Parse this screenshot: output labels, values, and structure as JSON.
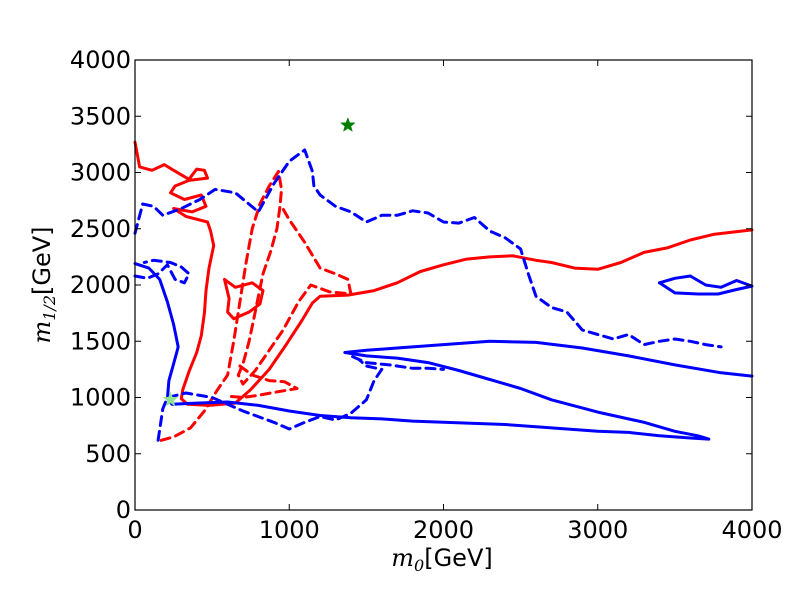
{
  "chart_data": {
    "type": "line",
    "title": "",
    "xlabel": {
      "symbol": "m",
      "subscript": "0",
      "unit": "[GeV]"
    },
    "ylabel": {
      "symbol": "m",
      "subscript": "1/2",
      "unit": "[GeV]"
    },
    "xlim": [
      0,
      4000
    ],
    "ylim": [
      0,
      4000
    ],
    "xticks": [
      0,
      1000,
      2000,
      3000,
      4000
    ],
    "yticks": [
      0,
      500,
      1000,
      1500,
      2000,
      2500,
      3000,
      3500,
      4000
    ],
    "grid": false,
    "legend": "none",
    "colors": {
      "red": "#ff0000",
      "blue": "#0000ff",
      "green": "#007f00",
      "lightgreen": "#8fe38f"
    },
    "series": [
      {
        "name": "red-solid-contour",
        "color": "#ff0000",
        "style": "solid",
        "points": [
          [
            0,
            3270
          ],
          [
            30,
            3050
          ],
          [
            110,
            3020
          ],
          [
            190,
            3070
          ],
          [
            250,
            3020
          ],
          [
            350,
            2940
          ],
          [
            400,
            3030
          ],
          [
            450,
            3020
          ],
          [
            470,
            2950
          ],
          [
            350,
            2930
          ],
          [
            260,
            2880
          ],
          [
            230,
            2820
          ],
          [
            320,
            2760
          ],
          [
            430,
            2800
          ],
          [
            460,
            2700
          ],
          [
            370,
            2650
          ],
          [
            250,
            2680
          ],
          [
            330,
            2610
          ],
          [
            470,
            2560
          ],
          [
            490,
            2480
          ],
          [
            510,
            2350
          ],
          [
            480,
            2150
          ],
          [
            460,
            1950
          ],
          [
            450,
            1750
          ],
          [
            430,
            1550
          ],
          [
            400,
            1400
          ],
          [
            350,
            1230
          ],
          [
            310,
            1070
          ],
          [
            300,
            990
          ],
          [
            340,
            940
          ],
          [
            480,
            930
          ],
          [
            650,
            950
          ],
          [
            750,
            1070
          ],
          [
            870,
            1250
          ],
          [
            980,
            1470
          ],
          [
            1080,
            1680
          ],
          [
            1150,
            1840
          ],
          [
            1200,
            1900
          ],
          [
            1380,
            1910
          ],
          [
            1550,
            1950
          ],
          [
            1700,
            2020
          ],
          [
            1850,
            2120
          ],
          [
            2000,
            2180
          ],
          [
            2150,
            2230
          ],
          [
            2300,
            2250
          ],
          [
            2450,
            2260
          ],
          [
            2600,
            2220
          ],
          [
            2700,
            2200
          ],
          [
            2850,
            2150
          ],
          [
            3000,
            2140
          ],
          [
            3150,
            2200
          ],
          [
            3300,
            2290
          ],
          [
            3450,
            2330
          ],
          [
            3600,
            2400
          ],
          [
            3750,
            2450
          ],
          [
            4000,
            2490
          ]
        ]
      },
      {
        "name": "red-solid-small-loop",
        "color": "#ff0000",
        "style": "solid",
        "points": [
          [
            580,
            2050
          ],
          [
            650,
            1980
          ],
          [
            760,
            2020
          ],
          [
            830,
            1950
          ],
          [
            810,
            1830
          ],
          [
            740,
            1760
          ],
          [
            640,
            1700
          ],
          [
            600,
            1760
          ],
          [
            610,
            1880
          ],
          [
            580,
            2050
          ]
        ]
      },
      {
        "name": "red-dashed-contour",
        "color": "#ff0000",
        "style": "dashed",
        "points": [
          [
            170,
            620
          ],
          [
            250,
            650
          ],
          [
            360,
            730
          ],
          [
            450,
            880
          ],
          [
            530,
            1060
          ],
          [
            600,
            1200
          ],
          [
            640,
            1500
          ],
          [
            680,
            1850
          ],
          [
            720,
            2200
          ],
          [
            760,
            2500
          ],
          [
            810,
            2720
          ],
          [
            870,
            2880
          ],
          [
            930,
            3010
          ],
          [
            950,
            2850
          ],
          [
            940,
            2700
          ],
          [
            920,
            2500
          ],
          [
            880,
            2300
          ],
          [
            830,
            2100
          ],
          [
            800,
            1900
          ],
          [
            770,
            1700
          ],
          [
            740,
            1500
          ],
          [
            700,
            1300
          ],
          [
            670,
            1200
          ],
          [
            700,
            1120
          ],
          [
            780,
            1240
          ],
          [
            860,
            1400
          ],
          [
            960,
            1600
          ],
          [
            1060,
            1850
          ],
          [
            1140,
            2000
          ],
          [
            1260,
            1940
          ],
          [
            1400,
            1920
          ],
          [
            1380,
            2050
          ],
          [
            1300,
            2100
          ],
          [
            1200,
            2150
          ],
          [
            1100,
            2380
          ],
          [
            1050,
            2480
          ],
          [
            1000,
            2580
          ],
          [
            950,
            2700
          ]
        ]
      },
      {
        "name": "red-dashed-lower",
        "color": "#ff0000",
        "style": "dashed",
        "points": [
          [
            680,
            1280
          ],
          [
            760,
            1200
          ],
          [
            870,
            1150
          ],
          [
            970,
            1140
          ],
          [
            1050,
            1080
          ],
          [
            920,
            1050
          ],
          [
            800,
            1020
          ],
          [
            700,
            1000
          ],
          [
            620,
            1010
          ]
        ]
      },
      {
        "name": "blue-solid-outer",
        "color": "#0000ff",
        "style": "solid",
        "points": [
          [
            0,
            2190
          ],
          [
            90,
            2150
          ],
          [
            160,
            2050
          ],
          [
            210,
            1850
          ],
          [
            250,
            1650
          ],
          [
            280,
            1450
          ],
          [
            250,
            1300
          ],
          [
            220,
            1150
          ],
          [
            210,
            990
          ],
          [
            240,
            940
          ],
          [
            400,
            950
          ],
          [
            600,
            960
          ],
          [
            800,
            930
          ],
          [
            1000,
            880
          ],
          [
            1200,
            840
          ],
          [
            1400,
            820
          ],
          [
            1600,
            810
          ],
          [
            1800,
            790
          ],
          [
            2000,
            780
          ],
          [
            2200,
            770
          ],
          [
            2400,
            760
          ],
          [
            2600,
            740
          ],
          [
            2800,
            720
          ],
          [
            3000,
            700
          ],
          [
            3200,
            690
          ],
          [
            3400,
            660
          ],
          [
            3600,
            640
          ],
          [
            3720,
            630
          ],
          [
            3650,
            660
          ],
          [
            3500,
            700
          ],
          [
            3300,
            780
          ],
          [
            3000,
            870
          ],
          [
            2700,
            980
          ],
          [
            2500,
            1080
          ],
          [
            2300,
            1160
          ],
          [
            2100,
            1240
          ],
          [
            1900,
            1310
          ],
          [
            1700,
            1350
          ],
          [
            1500,
            1370
          ],
          [
            1360,
            1400
          ],
          [
            1500,
            1420
          ],
          [
            1700,
            1440
          ],
          [
            1900,
            1460
          ],
          [
            2100,
            1480
          ],
          [
            2300,
            1500
          ],
          [
            2600,
            1490
          ],
          [
            2900,
            1440
          ],
          [
            3200,
            1370
          ],
          [
            3500,
            1290
          ],
          [
            3800,
            1220
          ],
          [
            4000,
            1190
          ]
        ]
      },
      {
        "name": "blue-solid-right",
        "color": "#0000ff",
        "style": "solid",
        "points": [
          [
            3400,
            2020
          ],
          [
            3500,
            1930
          ],
          [
            3650,
            1920
          ],
          [
            3780,
            1920
          ],
          [
            3900,
            1960
          ],
          [
            4000,
            1990
          ],
          [
            3900,
            2040
          ],
          [
            3800,
            1980
          ],
          [
            3700,
            2000
          ],
          [
            3600,
            2080
          ],
          [
            3500,
            2060
          ],
          [
            3400,
            2020
          ]
        ]
      },
      {
        "name": "blue-dashed-contour",
        "color": "#0000ff",
        "style": "dashed",
        "points": [
          [
            0,
            2460
          ],
          [
            50,
            2720
          ],
          [
            120,
            2700
          ],
          [
            180,
            2620
          ],
          [
            300,
            2680
          ],
          [
            420,
            2760
          ],
          [
            520,
            2850
          ],
          [
            650,
            2820
          ],
          [
            800,
            2650
          ],
          [
            900,
            2900
          ],
          [
            1000,
            3100
          ],
          [
            1050,
            3150
          ],
          [
            1100,
            3200
          ],
          [
            1150,
            3010
          ],
          [
            1160,
            2880
          ],
          [
            1200,
            2800
          ],
          [
            1300,
            2700
          ],
          [
            1400,
            2650
          ],
          [
            1500,
            2560
          ],
          [
            1600,
            2620
          ],
          [
            1700,
            2620
          ],
          [
            1800,
            2660
          ],
          [
            1900,
            2640
          ],
          [
            2000,
            2560
          ],
          [
            2100,
            2550
          ],
          [
            2200,
            2600
          ],
          [
            2300,
            2480
          ],
          [
            2400,
            2420
          ],
          [
            2500,
            2320
          ],
          [
            2550,
            2100
          ],
          [
            2600,
            1900
          ],
          [
            2700,
            1800
          ],
          [
            2800,
            1760
          ],
          [
            2900,
            1600
          ],
          [
            3000,
            1560
          ],
          [
            3100,
            1520
          ],
          [
            3200,
            1560
          ],
          [
            3300,
            1470
          ],
          [
            3400,
            1500
          ],
          [
            3500,
            1520
          ],
          [
            3600,
            1500
          ],
          [
            3700,
            1470
          ],
          [
            3800,
            1450
          ]
        ]
      },
      {
        "name": "blue-dashed-lower",
        "color": "#0000ff",
        "style": "dashed",
        "points": [
          [
            150,
            620
          ],
          [
            180,
            900
          ],
          [
            210,
            1000
          ],
          [
            330,
            1040
          ],
          [
            500,
            1000
          ],
          [
            700,
            880
          ],
          [
            900,
            780
          ],
          [
            1000,
            720
          ],
          [
            1100,
            780
          ],
          [
            1200,
            830
          ],
          [
            1300,
            800
          ],
          [
            1400,
            860
          ],
          [
            1500,
            980
          ],
          [
            1550,
            1150
          ],
          [
            1600,
            1250
          ],
          [
            1500,
            1280
          ],
          [
            1450,
            1340
          ],
          [
            1400,
            1370
          ],
          [
            1500,
            1310
          ],
          [
            1650,
            1290
          ],
          [
            1800,
            1260
          ],
          [
            1900,
            1260
          ],
          [
            2000,
            1250
          ]
        ]
      },
      {
        "name": "blue-dashed-left",
        "color": "#0000ff",
        "style": "dashed",
        "points": [
          [
            0,
            2080
          ],
          [
            80,
            2060
          ],
          [
            150,
            2100
          ],
          [
            210,
            2180
          ],
          [
            260,
            2050
          ],
          [
            320,
            2020
          ],
          [
            350,
            2100
          ],
          [
            300,
            2160
          ],
          [
            230,
            2200
          ],
          [
            120,
            2220
          ],
          [
            60,
            2200
          ]
        ]
      }
    ],
    "markers": [
      {
        "name": "benchmark-star",
        "x": 1380,
        "y": 3420,
        "color": "#007f00",
        "symbol": "star"
      },
      {
        "name": "light-star",
        "x": 230,
        "y": 980,
        "color": "#8fe38f",
        "symbol": "star"
      }
    ]
  }
}
